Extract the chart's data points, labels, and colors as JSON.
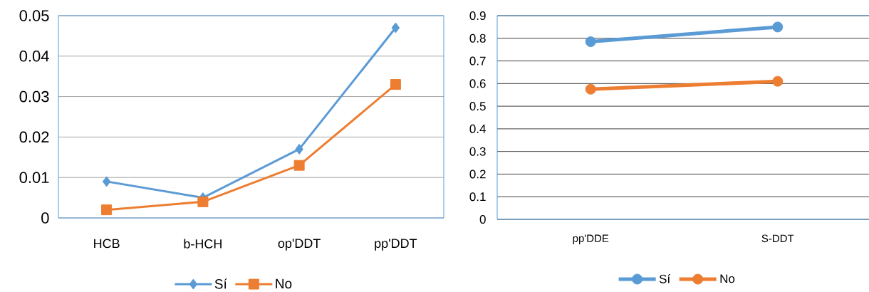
{
  "chart_data": [
    {
      "type": "line",
      "categories": [
        "HCB",
        "b-HCH",
        "op'DDT",
        "pp'DDT"
      ],
      "series": [
        {
          "name": "Sí",
          "color": "#5b9bd5",
          "marker": "diamond",
          "values": [
            0.009,
            0.005,
            0.017,
            0.047
          ]
        },
        {
          "name": "No",
          "color": "#ed7d31",
          "marker": "square",
          "values": [
            0.002,
            0.004,
            0.013,
            0.033
          ]
        }
      ],
      "ylim": [
        0,
        0.05
      ],
      "yticks": [
        0,
        0.01,
        0.02,
        0.03,
        0.04,
        0.05
      ],
      "grid": "y",
      "legend": "bottom"
    },
    {
      "type": "line",
      "categories": [
        "pp'DDE",
        "S-DDT"
      ],
      "series": [
        {
          "name": "Sí",
          "color": "#5b9bd5",
          "marker": "circle",
          "values": [
            0.785,
            0.85
          ]
        },
        {
          "name": "No",
          "color": "#ed7d31",
          "marker": "circle",
          "values": [
            0.575,
            0.61
          ]
        }
      ],
      "ylim": [
        0,
        0.9
      ],
      "yticks": [
        0,
        0.1,
        0.2,
        0.3,
        0.4,
        0.5,
        0.6,
        0.7,
        0.8,
        0.9
      ],
      "grid": "y",
      "legend": "bottom"
    }
  ]
}
